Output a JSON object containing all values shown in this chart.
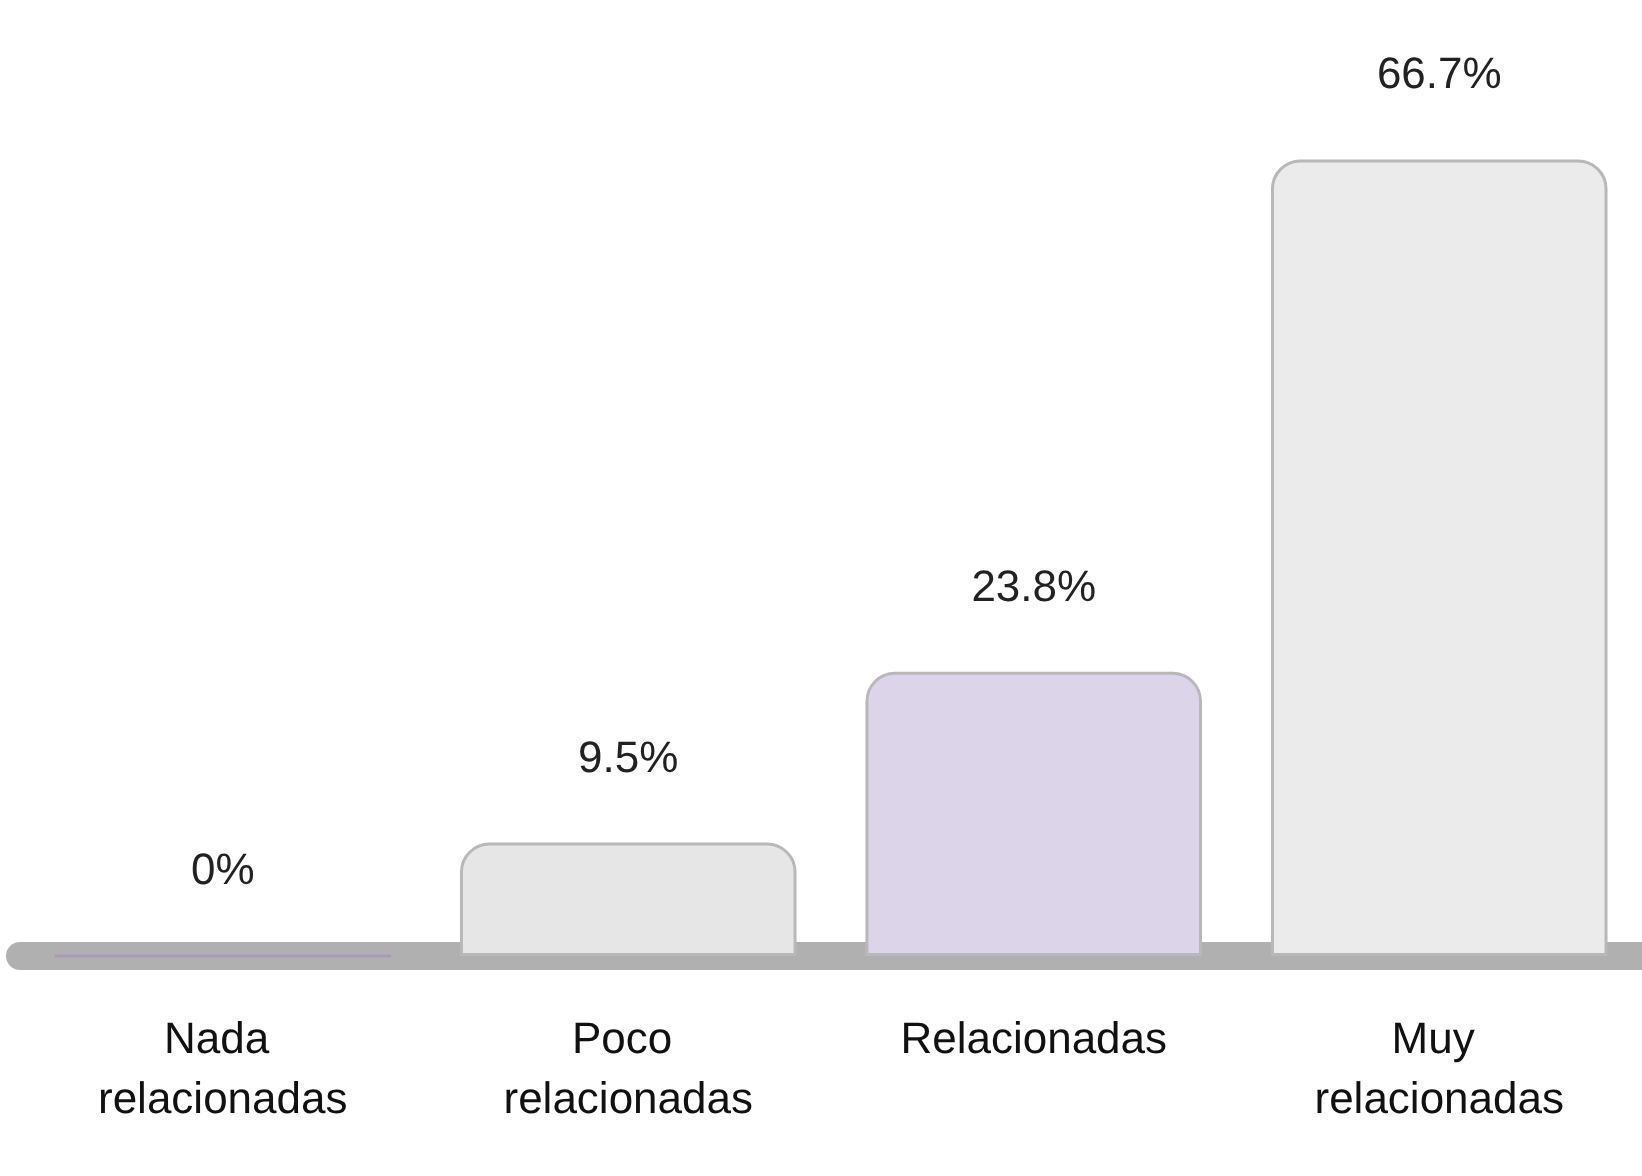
{
  "chart_data": {
    "type": "bar",
    "categories": [
      "Nada relacionadas",
      "Poco relacionadas",
      "Relacionadas",
      "Muy relacionadas"
    ],
    "values": [
      0,
      9.5,
      23.8,
      66.7
    ],
    "colors": [
      "#a79cb8",
      "#e6e6e6",
      "#dcd4e8",
      "#ebebeb"
    ],
    "value_labels": [
      "0%",
      "9.5%",
      "23.8%",
      "66.7%"
    ]
  }
}
